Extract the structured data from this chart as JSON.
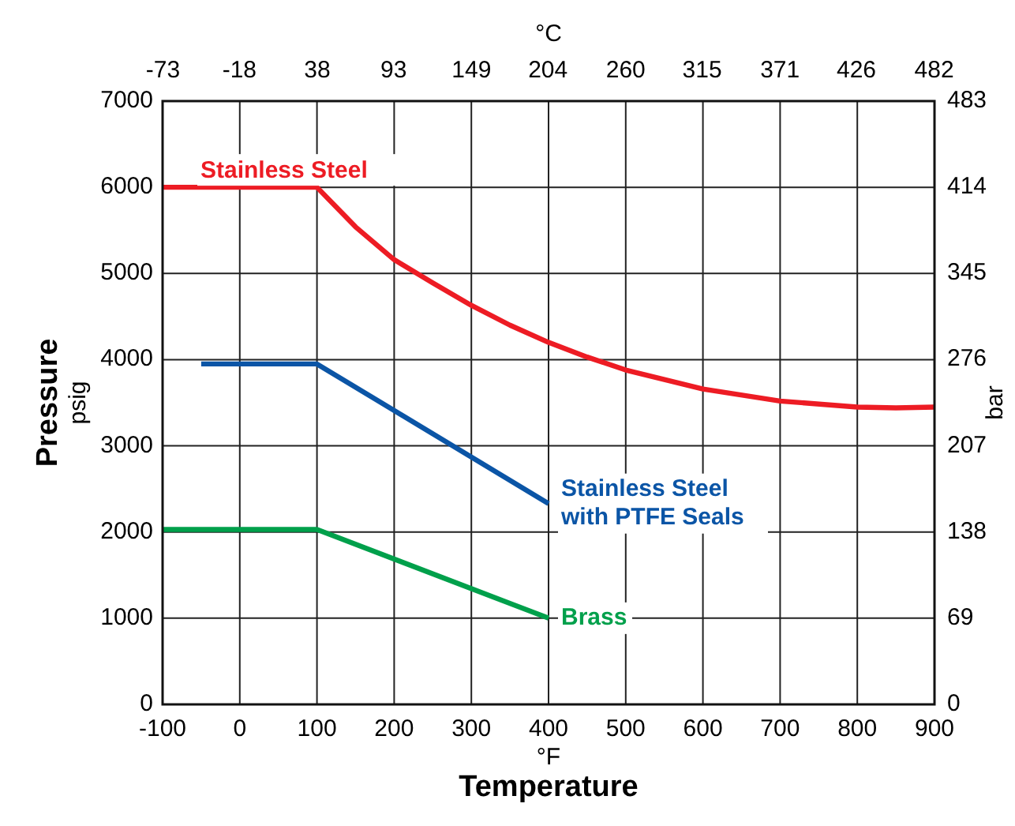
{
  "chart_data": {
    "type": "line",
    "xlabel": "°F\nTemperature",
    "ylabel": "Pressure\npsig",
    "x2label": "°C",
    "y2label": "bar",
    "xlim": [
      -100,
      900
    ],
    "xticks": [
      -100,
      0,
      100,
      200,
      300,
      400,
      500,
      600,
      700,
      800,
      900
    ],
    "x2lim": [
      -73.3,
      482.2
    ],
    "x2ticks": [
      -73,
      -18,
      38,
      93,
      149,
      204,
      260,
      315,
      371,
      426,
      482
    ],
    "ylim": [
      0,
      7000
    ],
    "yticks": [
      0,
      1000,
      2000,
      3000,
      4000,
      5000,
      6000,
      7000
    ],
    "y2lim": [
      0,
      483
    ],
    "y2ticks": [
      0,
      69,
      138,
      207,
      276,
      345,
      414,
      483
    ],
    "grid": true,
    "marker": "none",
    "line_style": "solid",
    "series": [
      {
        "name": "Stainless Steel",
        "color": "#ed1c24",
        "x": [
          -100,
          100,
          150,
          200,
          250,
          300,
          350,
          400,
          450,
          500,
          600,
          700,
          800,
          850,
          900
        ],
        "values": [
          6000,
          6000,
          5540,
          5160,
          4890,
          4630,
          4400,
          4200,
          4030,
          3880,
          3660,
          3520,
          3450,
          3440,
          3450
        ]
      },
      {
        "name": "Stainless Steel with PTFE Seals",
        "color": "#0b55a6",
        "x": [
          -50,
          100,
          400
        ],
        "values": [
          3950,
          3950,
          2330
        ]
      },
      {
        "name": "Brass",
        "color": "#00a04b",
        "x": [
          -100,
          100,
          400
        ],
        "values": [
          2030,
          2030,
          1000
        ]
      }
    ]
  }
}
